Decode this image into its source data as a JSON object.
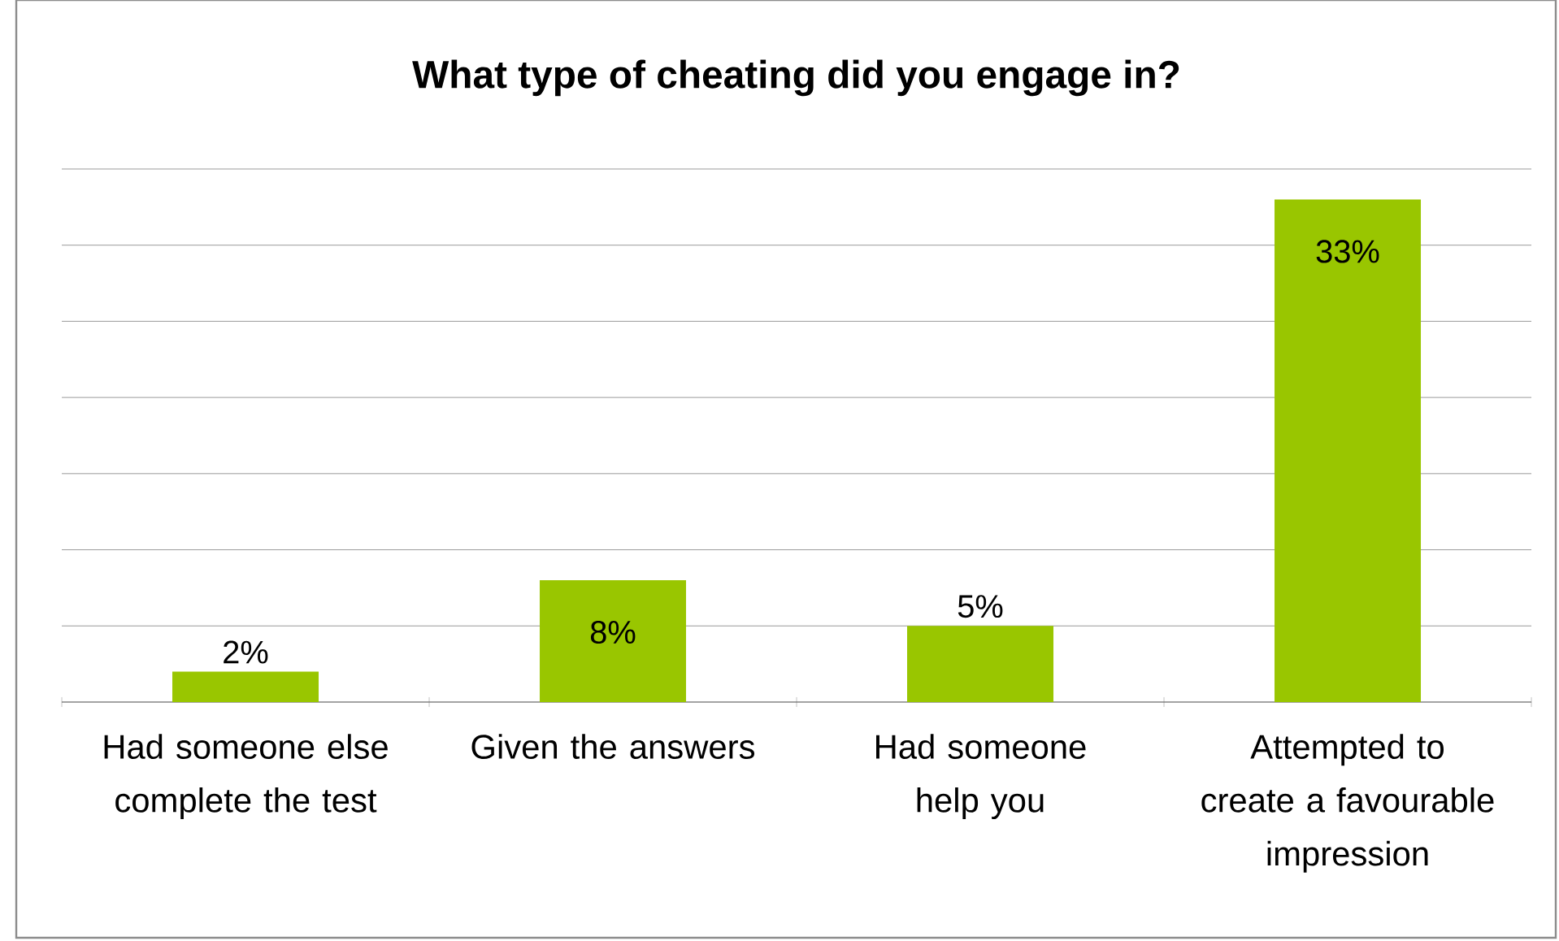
{
  "chart_data": {
    "type": "bar",
    "title": "What type of cheating did you engage in?",
    "categories": [
      "Had someone else complete the test",
      "Given the answers",
      "Had someone help you",
      "Attempted to create a favourable impression"
    ],
    "values": [
      2,
      8,
      5,
      33
    ],
    "value_labels": [
      "2%",
      "8%",
      "5%",
      "33%"
    ],
    "color": "#99c600",
    "ylim": [
      0,
      35
    ],
    "yticks": [
      {
        "value": 0,
        "label": null
      },
      {
        "value": 5,
        "label": null
      },
      {
        "value": 10,
        "label": null
      },
      {
        "value": 15,
        "label": null
      },
      {
        "value": 20,
        "label": null
      },
      {
        "value": 25,
        "label": null
      },
      {
        "value": 30,
        "label": null
      },
      {
        "value": 35,
        "label": null
      }
    ],
    "tick_labels": "x",
    "grid": "y"
  }
}
